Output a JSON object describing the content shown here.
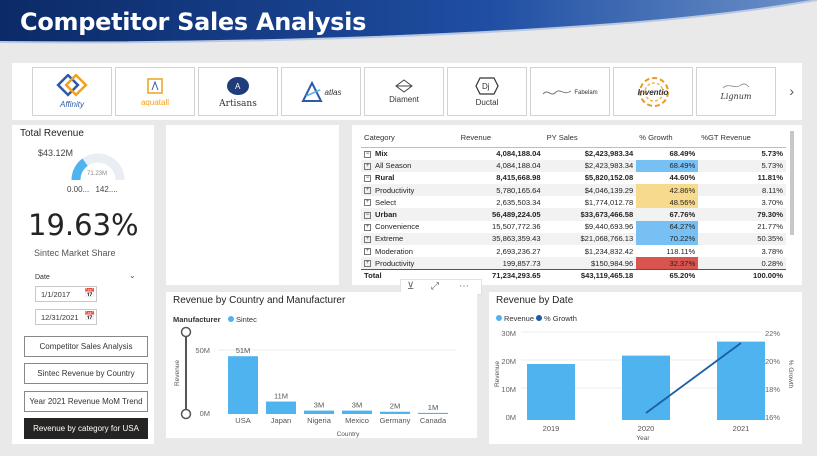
{
  "header": {
    "title": "Competitor Sales Analysis"
  },
  "logos": [
    {
      "name": "Affinity"
    },
    {
      "name": "aquatall"
    },
    {
      "name": "Artisans"
    },
    {
      "name": "atlas"
    },
    {
      "name": "Diament"
    },
    {
      "name": "Ductal"
    },
    {
      "name": "Fabelam"
    },
    {
      "name": "Inventio"
    },
    {
      "name": "Lignum"
    }
  ],
  "kpi": {
    "title": "Total Revenue",
    "gauge_value": "$43.12M",
    "gauge_target": "71.23M",
    "gauge_min": "0.00...",
    "gauge_max": "142....",
    "gauge_fill": 0.3,
    "share": "19.63%",
    "share_label": "Sintec Market Share"
  },
  "date_slicer": {
    "label": "Date",
    "start": "1/1/2017",
    "end": "12/31/2021"
  },
  "nav_buttons": [
    "Competitor Sales Analysis",
    "Sintec Revenue by Country",
    "Year 2021 Revenue MoM Trend",
    "Revenue by category for USA"
  ],
  "matrix": {
    "headers": [
      "Category",
      "Revenue",
      "PY Sales",
      "% Growth",
      "%GT Revenue"
    ],
    "rows": [
      {
        "c": "Mix",
        "r": "4,084,188.04",
        "p": "$2,423,983.34",
        "g": "68.49%",
        "t": "5.73%"
      },
      {
        "c": "All Season",
        "r": "4,084,188.04",
        "p": "$2,423,983.34",
        "g": "68.49%",
        "t": "5.73%"
      },
      {
        "c": "Rural",
        "r": "8,415,668.98",
        "p": "$5,820,152.08",
        "g": "44.60%",
        "t": "11.81%"
      },
      {
        "c": "Productivity",
        "r": "5,780,165.64",
        "p": "$4,046,139.29",
        "g": "42.86%",
        "t": "8.11%"
      },
      {
        "c": "Select",
        "r": "2,635,503.34",
        "p": "$1,774,012.78",
        "g": "48.56%",
        "t": "3.70%"
      },
      {
        "c": "Urban",
        "r": "56,489,224.05",
        "p": "$33,673,466.58",
        "g": "67.76%",
        "t": "79.30%"
      },
      {
        "c": "Convenience",
        "r": "15,507,772.36",
        "p": "$9,440,693.96",
        "g": "64.27%",
        "t": "21.77%"
      },
      {
        "c": "Extreme",
        "r": "35,863,359.43",
        "p": "$21,068,766.13",
        "g": "70.22%",
        "t": "50.35%"
      },
      {
        "c": "Moderation",
        "r": "2,693,236.27",
        "p": "$1,234,832.42",
        "g": "118.11%",
        "t": "3.78%"
      },
      {
        "c": "Productivity",
        "r": "199,857.73",
        "p": "$150,984.96",
        "g": "32.37%",
        "t": "0.28%"
      }
    ],
    "total": {
      "c": "Total",
      "r": "71,234,293.65",
      "p": "$43,119,465.18",
      "g": "65.20%",
      "t": "100.00%"
    }
  },
  "chart1": {
    "title": "Revenue by Country and Manufacturer",
    "legend_title": "Manufacturer",
    "series_name": "Sintec",
    "axis_title_y": "Revenue",
    "axis_title_x": "Country",
    "ytick_labels": [
      "50M",
      "0M"
    ]
  },
  "chart2": {
    "title": "Revenue by Date",
    "legend": [
      "Revenue",
      "% Growth"
    ],
    "axis_title_y": "Revenue",
    "axis_title_y2": "% Growth",
    "axis_title_x": "Year",
    "ytick_labels": [
      "30M",
      "20M",
      "10M",
      "0M"
    ],
    "y2tick_labels": [
      "22%",
      "20%",
      "18%",
      "16%"
    ]
  },
  "chart_data": [
    {
      "type": "bar",
      "title": "Revenue by Country and Manufacturer",
      "categories": [
        "USA",
        "Japan",
        "Nigeria",
        "Mexico",
        "Germany",
        "Canada"
      ],
      "values": [
        51,
        11,
        3,
        3,
        2,
        1
      ],
      "value_labels": [
        "51M",
        "11M",
        "3M",
        "3M",
        "2M",
        "1M"
      ],
      "series": [
        {
          "name": "Sintec",
          "values": [
            51,
            11,
            3,
            3,
            2,
            1
          ]
        }
      ],
      "xlabel": "Country",
      "ylabel": "Revenue",
      "ylim": [
        0,
        60
      ]
    },
    {
      "type": "bar",
      "title": "Revenue by Date",
      "categories": [
        "2019",
        "2020",
        "2021"
      ],
      "series": [
        {
          "name": "Revenue",
          "type": "bar",
          "values": [
            20,
            23,
            28
          ]
        },
        {
          "name": "% Growth",
          "type": "line",
          "values": [
            null,
            16.5,
            21.5
          ]
        }
      ],
      "xlabel": "Year",
      "ylabel": "Revenue",
      "y2label": "% Growth",
      "ylim": [
        0,
        30
      ],
      "y2lim": [
        16,
        22
      ]
    }
  ],
  "colors": {
    "bar": "#4fb3f0",
    "line": "#1b5ea7",
    "header_dark": "#0b2a66",
    "header_mid": "#1f4ea3",
    "cond_blue": "#77c0f3",
    "cond_yellow": "#f7da8d",
    "cond_red": "#d9534f"
  },
  "icons": {
    "calendar": "📅",
    "chevron": "⌄",
    "expander": "⊟",
    "filter": "⊻",
    "more": "⋯",
    "focus": "⤢",
    "arrow": "›"
  }
}
